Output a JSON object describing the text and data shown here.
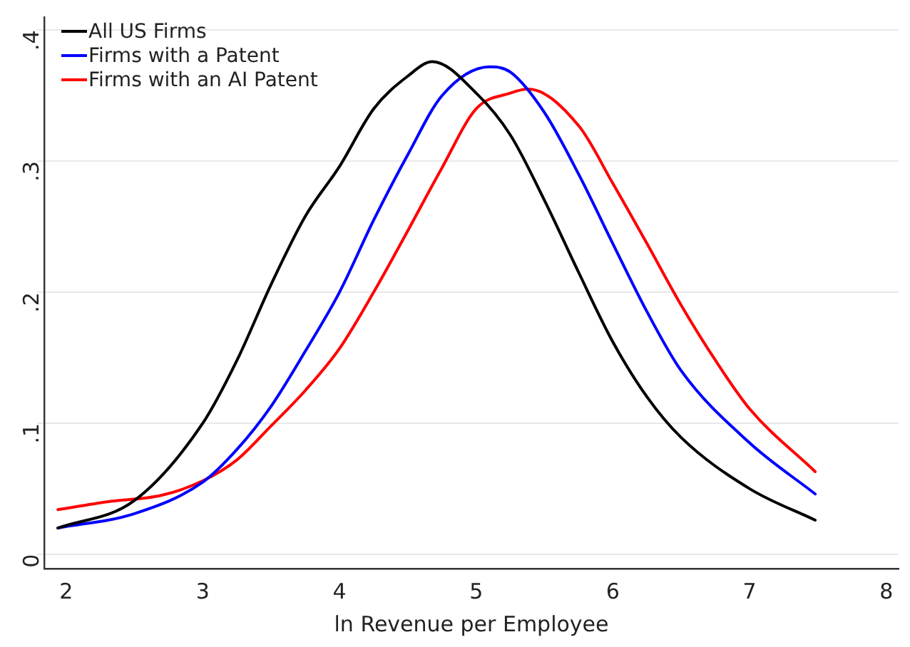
{
  "chart_data": {
    "type": "line",
    "xlabel": "ln Revenue per Employee",
    "xlim": [
      1.84,
      8.09
    ],
    "xticks": [
      2,
      3,
      4,
      5,
      6,
      7,
      8
    ],
    "ylim": [
      -0.011,
      0.41
    ],
    "yticks": [
      0,
      {
        "value": 0.1,
        "label": ".1"
      },
      {
        "value": 0.2,
        "label": ".2"
      },
      {
        "value": 0.3,
        "label": ".3"
      },
      {
        "value": 0.4,
        "label": ".4"
      }
    ],
    "grid": "y",
    "legend": "top left",
    "marker": "none",
    "line_style": "solid",
    "series": [
      {
        "name": "All US Firms",
        "color": "#000000",
        "x": [
          1.94,
          2.5,
          3,
          3.25,
          3.5,
          3.75,
          4,
          4.25,
          4.5,
          4.68,
          5,
          5.25,
          5.5,
          5.75,
          6,
          6.25,
          6.5,
          7,
          7.48
        ],
        "values": [
          0.02,
          0.041,
          0.1,
          0.148,
          0.206,
          0.258,
          0.296,
          0.34,
          0.365,
          0.376,
          0.352,
          0.32,
          0.27,
          0.215,
          0.162,
          0.12,
          0.089,
          0.05,
          0.026
        ]
      },
      {
        "name": "Firms with a Patent",
        "color": "#0000ff",
        "x": [
          1.94,
          2.5,
          3,
          3.25,
          3.5,
          3.75,
          4,
          4.25,
          4.5,
          4.75,
          5.1,
          5.25,
          5.5,
          5.75,
          6,
          6.25,
          6.5,
          7,
          7.48
        ],
        "values": [
          0.02,
          0.031,
          0.055,
          0.08,
          0.113,
          0.155,
          0.2,
          0.255,
          0.305,
          0.35,
          0.372,
          0.368,
          0.337,
          0.29,
          0.237,
          0.185,
          0.14,
          0.085,
          0.046
        ]
      },
      {
        "name": "Firms with an AI Patent",
        "color": "#ff0000",
        "x": [
          1.94,
          2.3,
          2.7,
          3,
          3.25,
          3.5,
          3.75,
          4,
          4.25,
          4.5,
          4.75,
          5,
          5.25,
          5.38,
          5.75,
          6,
          6.25,
          6.5,
          6.75,
          7,
          7.48
        ],
        "values": [
          0.034,
          0.04,
          0.045,
          0.056,
          0.072,
          0.098,
          0.125,
          0.157,
          0.2,
          0.247,
          0.295,
          0.34,
          0.352,
          0.355,
          0.327,
          0.283,
          0.237,
          0.19,
          0.148,
          0.111,
          0.063
        ]
      }
    ]
  }
}
